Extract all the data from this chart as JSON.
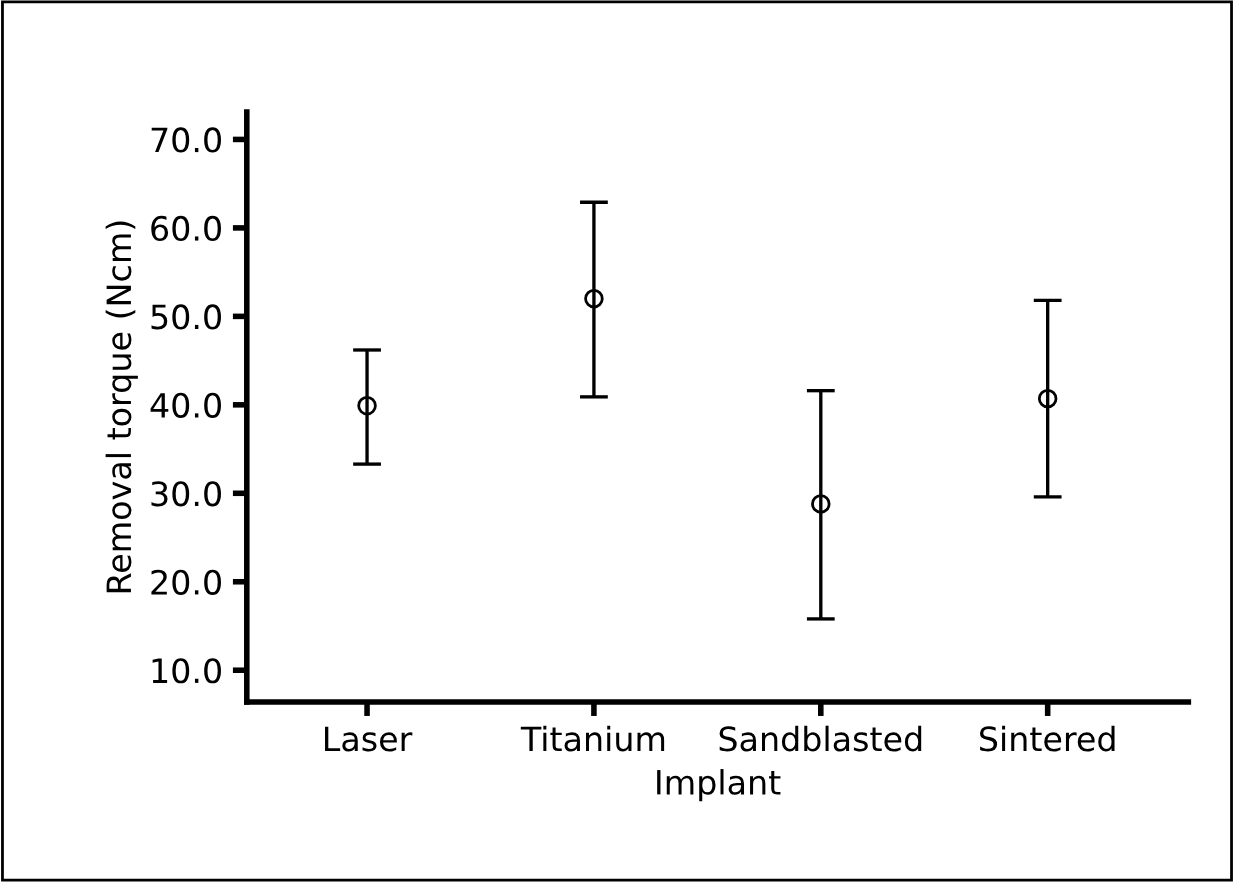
{
  "chart_data": {
    "type": "scatter",
    "xlabel": "Implant",
    "ylabel": "Removal torque (Ncm)",
    "categories": [
      "Laser",
      "Titanium",
      "Sandblasted",
      "Sintered"
    ],
    "values": [
      39.9,
      52.0,
      28.8,
      40.7
    ],
    "errors": [
      [
        33.3,
        46.2
      ],
      [
        40.9,
        62.9
      ],
      [
        15.8,
        41.6
      ],
      [
        29.6,
        51.8
      ]
    ],
    "color": "#000000",
    "marker": "circle",
    "ylim": [
      6.4,
      73.1
    ],
    "yticks": [
      {
        "value": 10,
        "label": "10.0"
      },
      {
        "value": 20,
        "label": "20.0"
      },
      {
        "value": 30,
        "label": "30.0"
      },
      {
        "value": 40,
        "label": "40.0"
      },
      {
        "value": 50,
        "label": "50.0"
      },
      {
        "value": 60,
        "label": "60.0"
      },
      {
        "value": 70,
        "label": "70.0"
      }
    ],
    "grid": false,
    "legend": false
  }
}
